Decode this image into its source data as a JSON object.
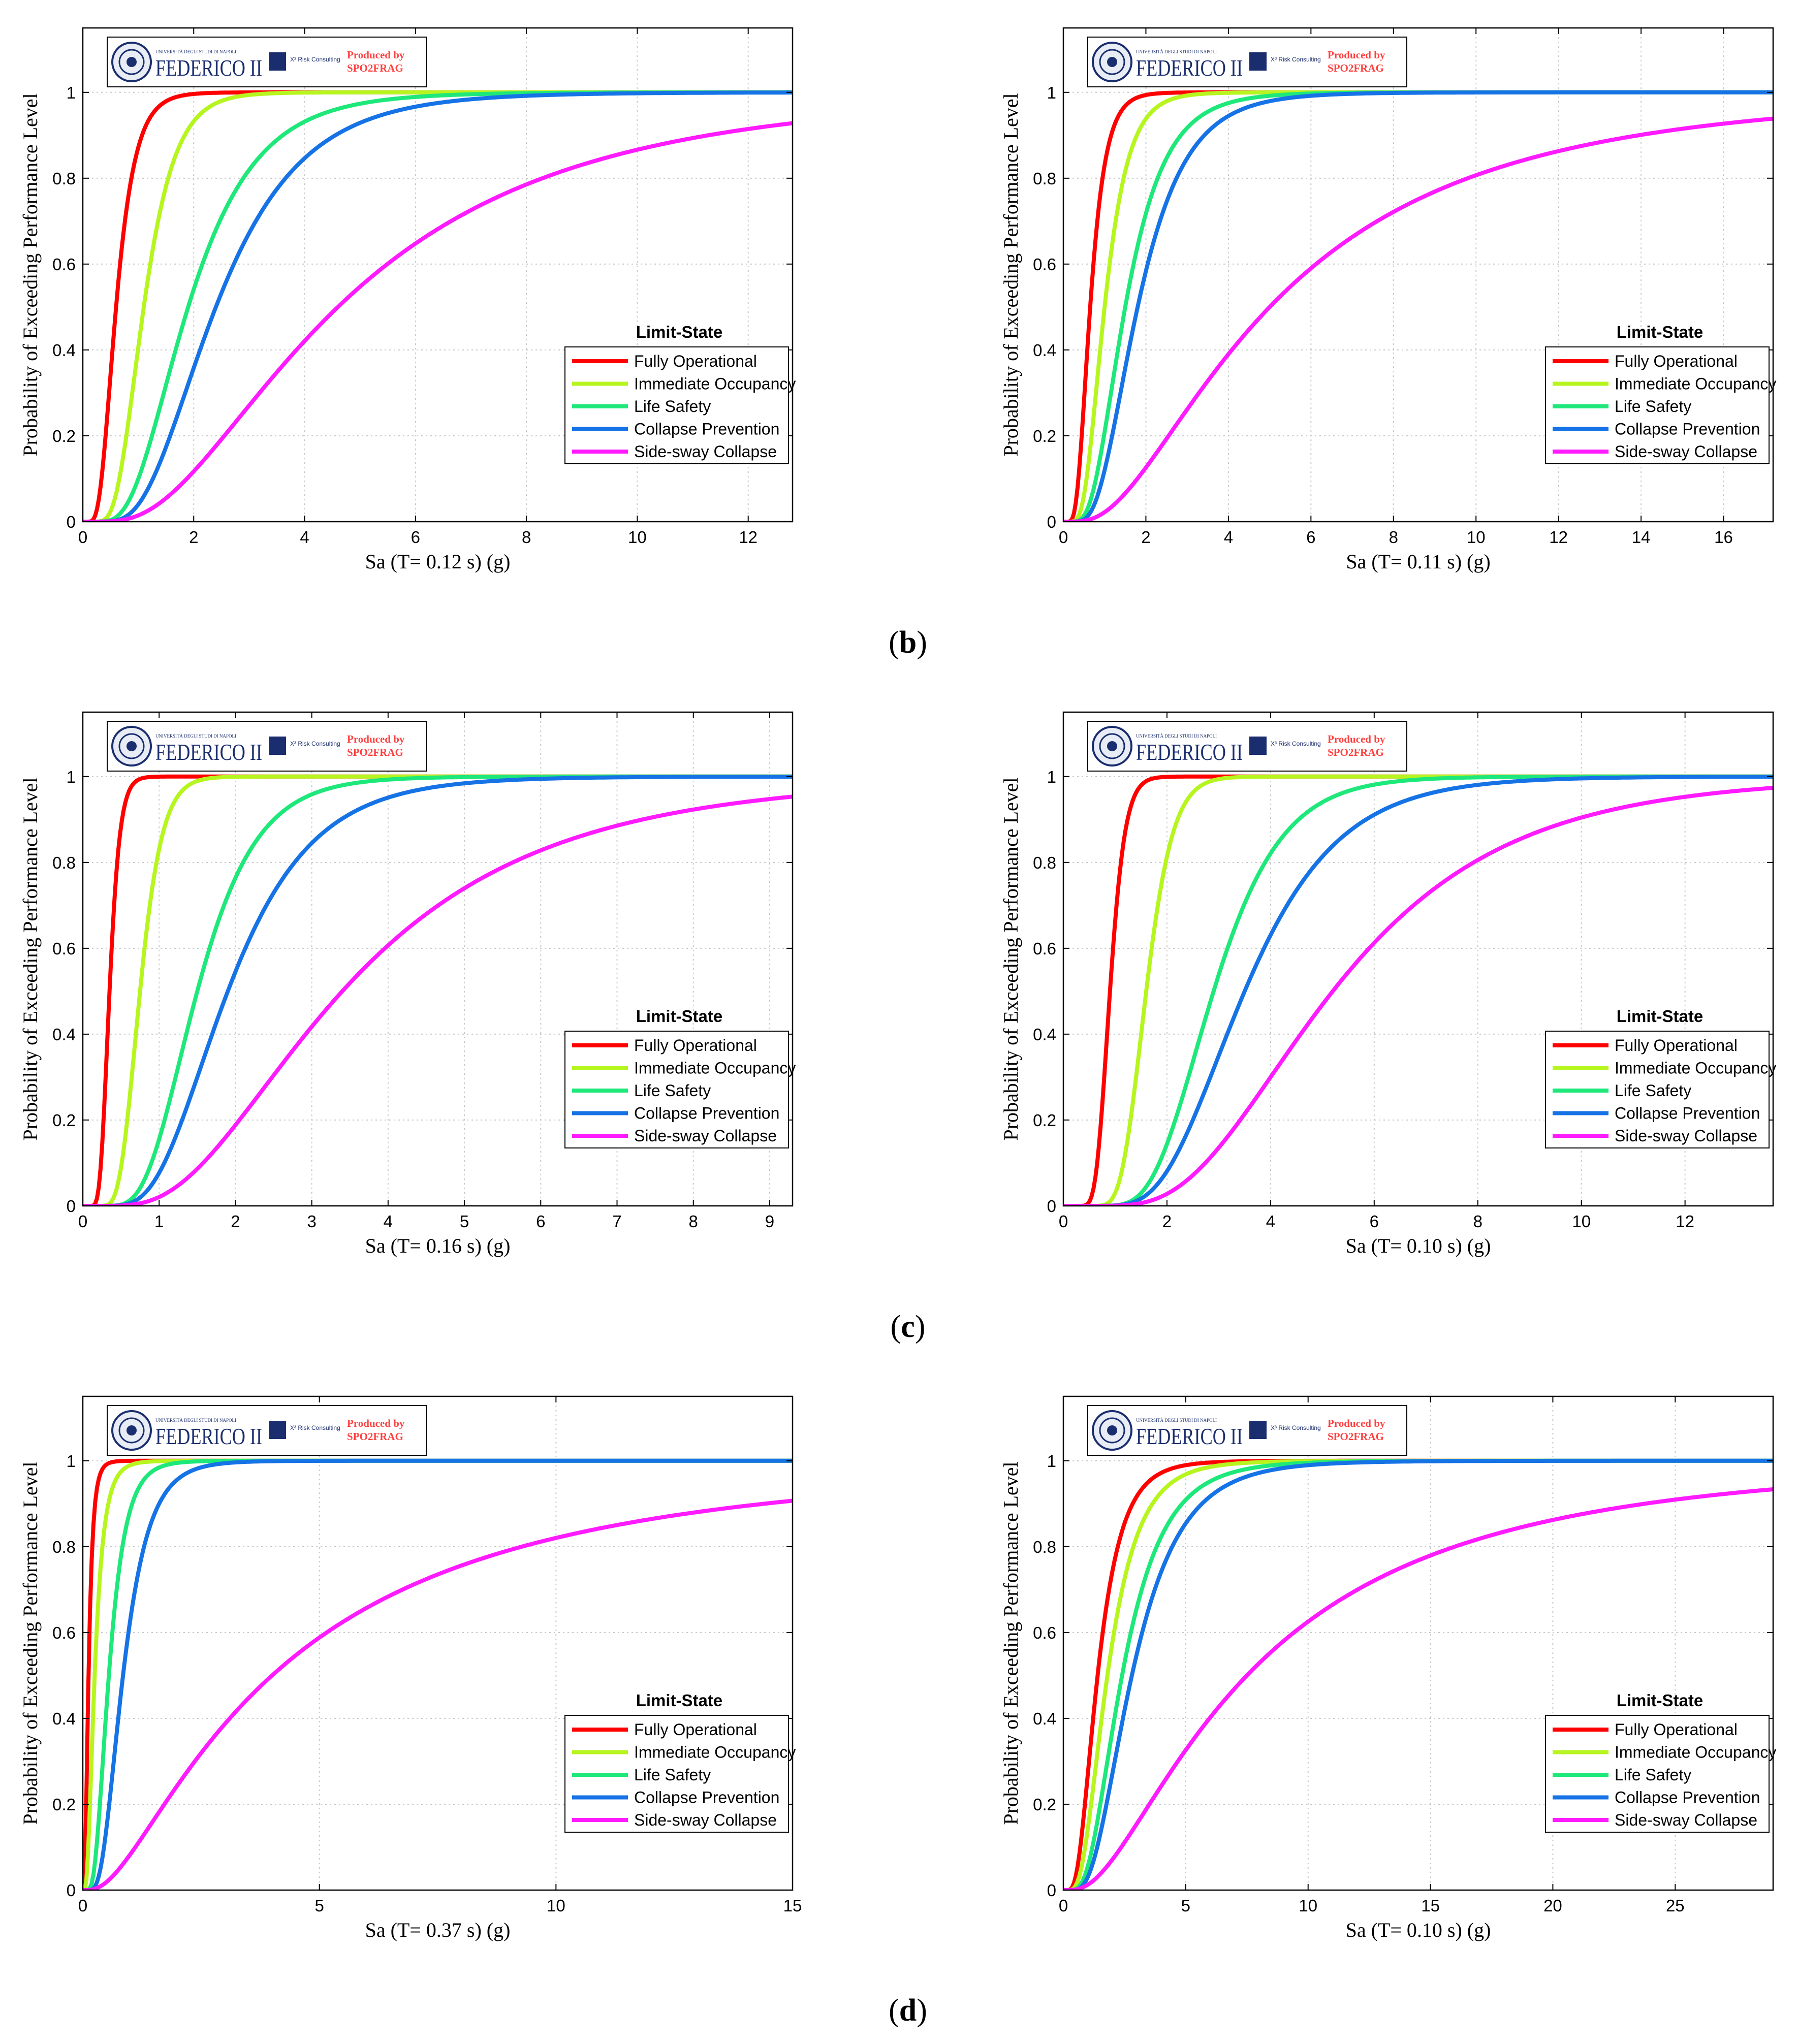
{
  "figure": {
    "panel_captions": [
      {
        "open": "(",
        "letter": "b",
        "close": ")"
      },
      {
        "open": "(",
        "letter": "c",
        "close": ")"
      },
      {
        "open": "(",
        "letter": "d",
        "close": ")"
      }
    ],
    "logo": {
      "university_small": "UNIVERSITÀ DEGLI STUDI DI NAPOLI",
      "university_name": "FEDERICO II",
      "partner": "X³ Risk Consulting",
      "produced_by": "Produced by",
      "tool": "SPO2FRAG"
    },
    "colors": {
      "Fully Operational": "#ff0000",
      "Immediate Occupancy": "#b7f51f",
      "Life Safety": "#1ee87a",
      "Collapse Prevention": "#1673e6",
      "Side-sway Collapse": "#ff1aff",
      "produced_by": "#ff4040",
      "logo": "#1a2d6e"
    }
  },
  "chart_data": [
    {
      "type": "line",
      "xlabel": "Sa (T= 0.12 s) (g)",
      "ylabel": "Probability of Exceeding Performance Level",
      "xlim": [
        0,
        12.8
      ],
      "ylim": [
        0,
        1.15
      ],
      "xticks": [
        0,
        2,
        4,
        6,
        8,
        10,
        12
      ],
      "yticks": [
        0,
        0.2,
        0.4,
        0.6,
        0.8,
        1
      ],
      "grid": true,
      "legend_title": "Limit-State",
      "legend_position": "lower-right",
      "series": [
        {
          "name": "Fully Operational",
          "median": 0.6,
          "beta": 0.45
        },
        {
          "name": "Immediate Occupancy",
          "median": 1.1,
          "beta": 0.4
        },
        {
          "name": "Life Safety",
          "median": 1.9,
          "beta": 0.5
        },
        {
          "name": "Collapse Prevention",
          "median": 2.4,
          "beta": 0.5
        },
        {
          "name": "Side-sway Collapse",
          "median": 4.6,
          "beta": 0.7
        }
      ]
    },
    {
      "type": "line",
      "xlabel": "Sa (T= 0.11 s) (g)",
      "ylabel": "Probability of Exceeding Performance Level",
      "xlim": [
        0,
        17.2
      ],
      "ylim": [
        0,
        1.15
      ],
      "xticks": [
        0,
        2,
        4,
        6,
        8,
        10,
        12,
        14,
        16
      ],
      "yticks": [
        0,
        0.2,
        0.4,
        0.6,
        0.8,
        1
      ],
      "grid": true,
      "legend_title": "Limit-State",
      "legend_position": "lower-right",
      "series": [
        {
          "name": "Fully Operational",
          "median": 0.65,
          "beta": 0.45
        },
        {
          "name": "Immediate Occupancy",
          "median": 1.0,
          "beta": 0.45
        },
        {
          "name": "Life Safety",
          "median": 1.5,
          "beta": 0.5
        },
        {
          "name": "Collapse Prevention",
          "median": 1.8,
          "beta": 0.5
        },
        {
          "name": "Side-sway Collapse",
          "median": 5.0,
          "beta": 0.8
        }
      ]
    },
    {
      "type": "line",
      "xlabel": "Sa (T= 0.16 s) (g)",
      "ylabel": "Probability of Exceeding Performance Level",
      "xlim": [
        0,
        9.3
      ],
      "ylim": [
        0,
        1.15
      ],
      "xticks": [
        0,
        1,
        2,
        3,
        4,
        5,
        6,
        7,
        8,
        9
      ],
      "yticks": [
        0,
        0.2,
        0.4,
        0.6,
        0.8,
        1
      ],
      "grid": true,
      "legend_title": "Limit-State",
      "legend_position": "lower-right",
      "series": [
        {
          "name": "Fully Operational",
          "median": 0.35,
          "beta": 0.3
        },
        {
          "name": "Immediate Occupancy",
          "median": 0.75,
          "beta": 0.3
        },
        {
          "name": "Life Safety",
          "median": 1.5,
          "beta": 0.4
        },
        {
          "name": "Collapse Prevention",
          "median": 1.9,
          "beta": 0.45
        },
        {
          "name": "Side-sway Collapse",
          "median": 3.4,
          "beta": 0.6
        }
      ]
    },
    {
      "type": "line",
      "xlabel": "Sa (T= 0.10 s) (g)",
      "ylabel": "Probability of Exceeding Performance Level",
      "xlim": [
        0,
        13.7
      ],
      "ylim": [
        0,
        1.15
      ],
      "xticks": [
        0,
        2,
        4,
        6,
        8,
        10,
        12
      ],
      "yticks": [
        0,
        0.2,
        0.4,
        0.6,
        0.8,
        1
      ],
      "grid": true,
      "legend_title": "Limit-State",
      "legend_position": "lower-right",
      "series": [
        {
          "name": "Fully Operational",
          "median": 0.9,
          "beta": 0.25
        },
        {
          "name": "Immediate Occupancy",
          "median": 1.6,
          "beta": 0.25
        },
        {
          "name": "Life Safety",
          "median": 2.9,
          "beta": 0.35
        },
        {
          "name": "Collapse Prevention",
          "median": 3.5,
          "beta": 0.4
        },
        {
          "name": "Side-sway Collapse",
          "median": 5.2,
          "beta": 0.5
        }
      ]
    },
    {
      "type": "line",
      "xlabel": "Sa (T= 0.37 s) (g)",
      "ylabel": "Probability of Exceeding Performance Level",
      "xlim": [
        0,
        15
      ],
      "ylim": [
        0,
        1.15
      ],
      "xticks": [
        0,
        5,
        10,
        15
      ],
      "yticks": [
        0,
        0.2,
        0.4,
        0.6,
        0.8,
        1
      ],
      "grid": true,
      "legend_title": "Limit-State",
      "legend_position": "lower-right",
      "series": [
        {
          "name": "Fully Operational",
          "median": 0.12,
          "beta": 0.6
        },
        {
          "name": "Immediate Occupancy",
          "median": 0.25,
          "beta": 0.6
        },
        {
          "name": "Life Safety",
          "median": 0.55,
          "beta": 0.5
        },
        {
          "name": "Collapse Prevention",
          "median": 0.85,
          "beta": 0.5
        },
        {
          "name": "Side-sway Collapse",
          "median": 4.0,
          "beta": 1.0
        }
      ]
    },
    {
      "type": "line",
      "xlabel": "Sa (T= 0.10 s) (g)",
      "ylabel": "Probability of Exceeding Performance Level",
      "xlim": [
        0,
        29
      ],
      "ylim": [
        0,
        1.15
      ],
      "xticks": [
        0,
        5,
        10,
        15,
        20,
        25
      ],
      "yticks": [
        0,
        0.2,
        0.4,
        0.6,
        0.8,
        1
      ],
      "grid": true,
      "legend_title": "Limit-State",
      "legend_position": "lower-right",
      "series": [
        {
          "name": "Fully Operational",
          "median": 1.4,
          "beta": 0.55
        },
        {
          "name": "Immediate Occupancy",
          "median": 1.8,
          "beta": 0.55
        },
        {
          "name": "Life Safety",
          "median": 2.4,
          "beta": 0.55
        },
        {
          "name": "Collapse Prevention",
          "median": 2.8,
          "beta": 0.55
        },
        {
          "name": "Side-sway Collapse",
          "median": 7.5,
          "beta": 0.9
        }
      ]
    }
  ]
}
